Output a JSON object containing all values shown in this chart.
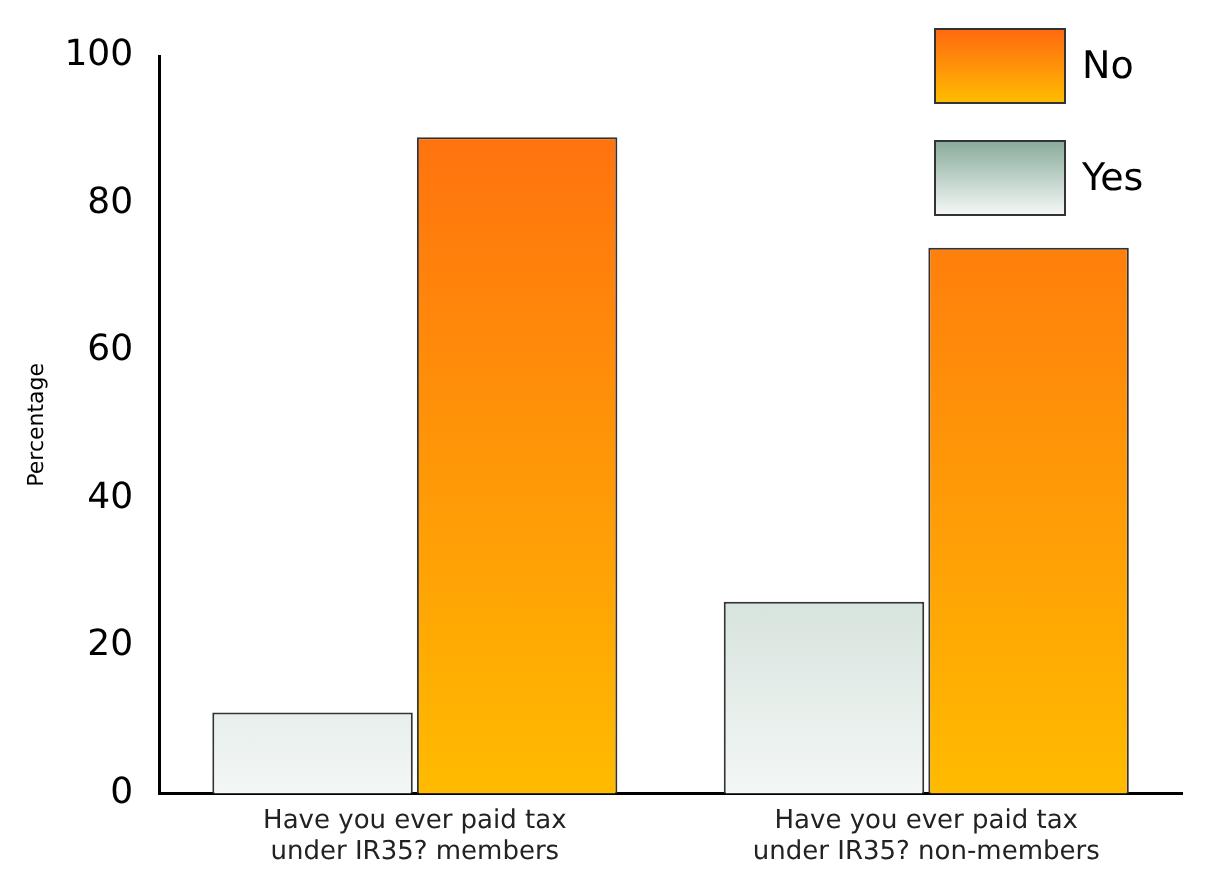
{
  "chart_data": {
    "type": "bar",
    "ylabel": "Percentage",
    "categories": [
      "Have you ever paid tax under IR35? members",
      "Have you ever paid tax under IR35? non-members"
    ],
    "series": [
      {
        "name": "Yes",
        "color": "#8aac9c",
        "values": [
          11,
          26
        ]
      },
      {
        "name": "No",
        "color": "#ff6a10",
        "values": [
          89,
          74
        ]
      }
    ],
    "ylim": [
      0,
      100
    ],
    "yticks": [
      0,
      20,
      40,
      60,
      80,
      100
    ],
    "grid": false,
    "legend": "top right"
  }
}
